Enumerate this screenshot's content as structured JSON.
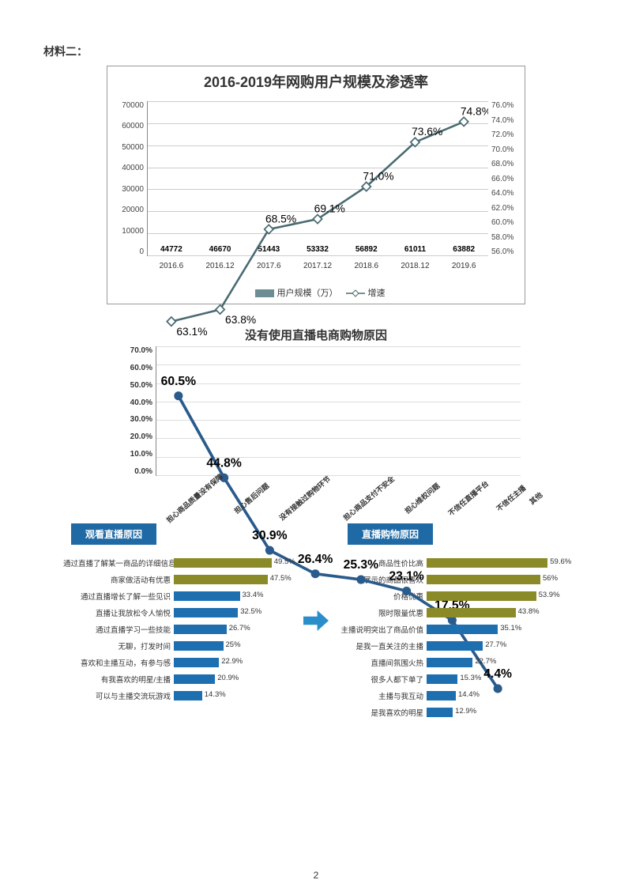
{
  "section_label": "材料二：",
  "chart1": {
    "type": "bar+line",
    "title": "2016-2019年网购用户规模及渗透率",
    "title_fontsize": 18,
    "background_color": "#ffffff",
    "border_color": "#999999",
    "grid_color": "#cccccc",
    "periods": [
      "2016.6",
      "2016.12",
      "2017.6",
      "2017.12",
      "2018.6",
      "2018.12",
      "2019.6"
    ],
    "bar_values": [
      44772,
      46670,
      51443,
      53332,
      56892,
      61011,
      63882
    ],
    "bar_color": "#6d8d94",
    "bar_width": 0.72,
    "y_left": {
      "min": 0,
      "max": 70000,
      "step": 10000,
      "label_fontsize": 10
    },
    "line_values": [
      63.1,
      63.8,
      68.5,
      69.1,
      71.0,
      73.6,
      74.8
    ],
    "line_color": "#4a6b72",
    "marker": "diamond",
    "marker_fill": "#ffffff",
    "marker_stroke": "#4a6b72",
    "y_right": {
      "min": 56.0,
      "max": 76.0,
      "step": 2.0,
      "label_fontsize": 10,
      "label_suffix": "%"
    },
    "legend": {
      "items": [
        {
          "swatch": "bar",
          "color": "#6d8d94",
          "label": "用户规模（万）"
        },
        {
          "swatch": "line-diamond",
          "color": "#4a6b72",
          "label": "增速"
        }
      ],
      "fontsize": 11
    },
    "label_fontsize": 10
  },
  "chart2": {
    "type": "line",
    "title": "没有使用直播电商购物原因",
    "title_fontsize": 15,
    "categories": [
      "担心商品质量没有保障",
      "担心售后问题",
      "没有接触过购物环节",
      "担心商品支付不安全",
      "担心维权问题",
      "不信任直播平台",
      "不信任主播",
      "其他"
    ],
    "values": [
      60.5,
      44.8,
      30.9,
      26.4,
      25.3,
      23.1,
      17.5,
      4.4
    ],
    "value_suffix": "%",
    "line_color": "#2a5b8c",
    "marker": "circle",
    "marker_fill": "#2a5b8c",
    "y": {
      "min": 0,
      "max": 70,
      "step": 10,
      "suffix": ".0%",
      "label_fontsize": 10,
      "bold": true
    },
    "grid_color": "#dddddd",
    "label_rotate_deg": -40,
    "label_fontsize": 9
  },
  "chart3": {
    "type": "hbar",
    "title": "观看直播原因",
    "title_bg": "#1f6aa5",
    "title_color": "#ffffff",
    "max": 60,
    "bars": [
      {
        "label": "通过直播了解某一商品的详细信息",
        "value": 49.5,
        "color": "#8b8a28"
      },
      {
        "label": "商家做活动有优惠",
        "value": 47.5,
        "color": "#8b8a28"
      },
      {
        "label": "通过直播增长了解一些见识",
        "value": 33.4,
        "color": "#1d6fb0"
      },
      {
        "label": "直播让我放松令人愉悦",
        "value": 32.5,
        "color": "#1d6fb0"
      },
      {
        "label": "通过直播学习一些技能",
        "value": 26.7,
        "color": "#1d6fb0"
      },
      {
        "label": "无聊，打发时间",
        "value": 25.0,
        "color": "#1d6fb0"
      },
      {
        "label": "喜欢和主播互动，有参与感",
        "value": 22.9,
        "color": "#1d6fb0"
      },
      {
        "label": "有我喜欢的明星/主播",
        "value": 20.9,
        "color": "#1d6fb0"
      },
      {
        "label": "可以与主播交流玩游戏",
        "value": 14.3,
        "color": "#1d6fb0"
      }
    ],
    "value_suffix": "%",
    "label_fontsize": 9.5
  },
  "chart4": {
    "type": "hbar",
    "title": "直播购物原因",
    "title_bg": "#1f6aa5",
    "title_color": "#ffffff",
    "max": 70,
    "bars": [
      {
        "label": "商品性价比高",
        "value": 59.6,
        "color": "#8b8a28"
      },
      {
        "label": "展示的商品很喜欢",
        "value": 56.0,
        "color": "#8b8a28"
      },
      {
        "label": "价格优惠",
        "value": 53.9,
        "color": "#8b8a28"
      },
      {
        "label": "限时限量优惠",
        "value": 43.8,
        "color": "#8b8a28"
      },
      {
        "label": "主播说明突出了商品价值",
        "value": 35.1,
        "color": "#1d6fb0"
      },
      {
        "label": "是我一直关注的主播",
        "value": 27.7,
        "color": "#1d6fb0"
      },
      {
        "label": "直播间氛围火热",
        "value": 22.7,
        "color": "#1d6fb0"
      },
      {
        "label": "很多人都下单了",
        "value": 15.3,
        "color": "#1d6fb0"
      },
      {
        "label": "主播与我互动",
        "value": 14.4,
        "color": "#1d6fb0"
      },
      {
        "label": "是我喜欢的明星",
        "value": 12.9,
        "color": "#1d6fb0"
      }
    ],
    "value_suffix": "%",
    "label_fontsize": 9.5
  },
  "arrow_color": "#2a8ecb",
  "page_number": "2"
}
